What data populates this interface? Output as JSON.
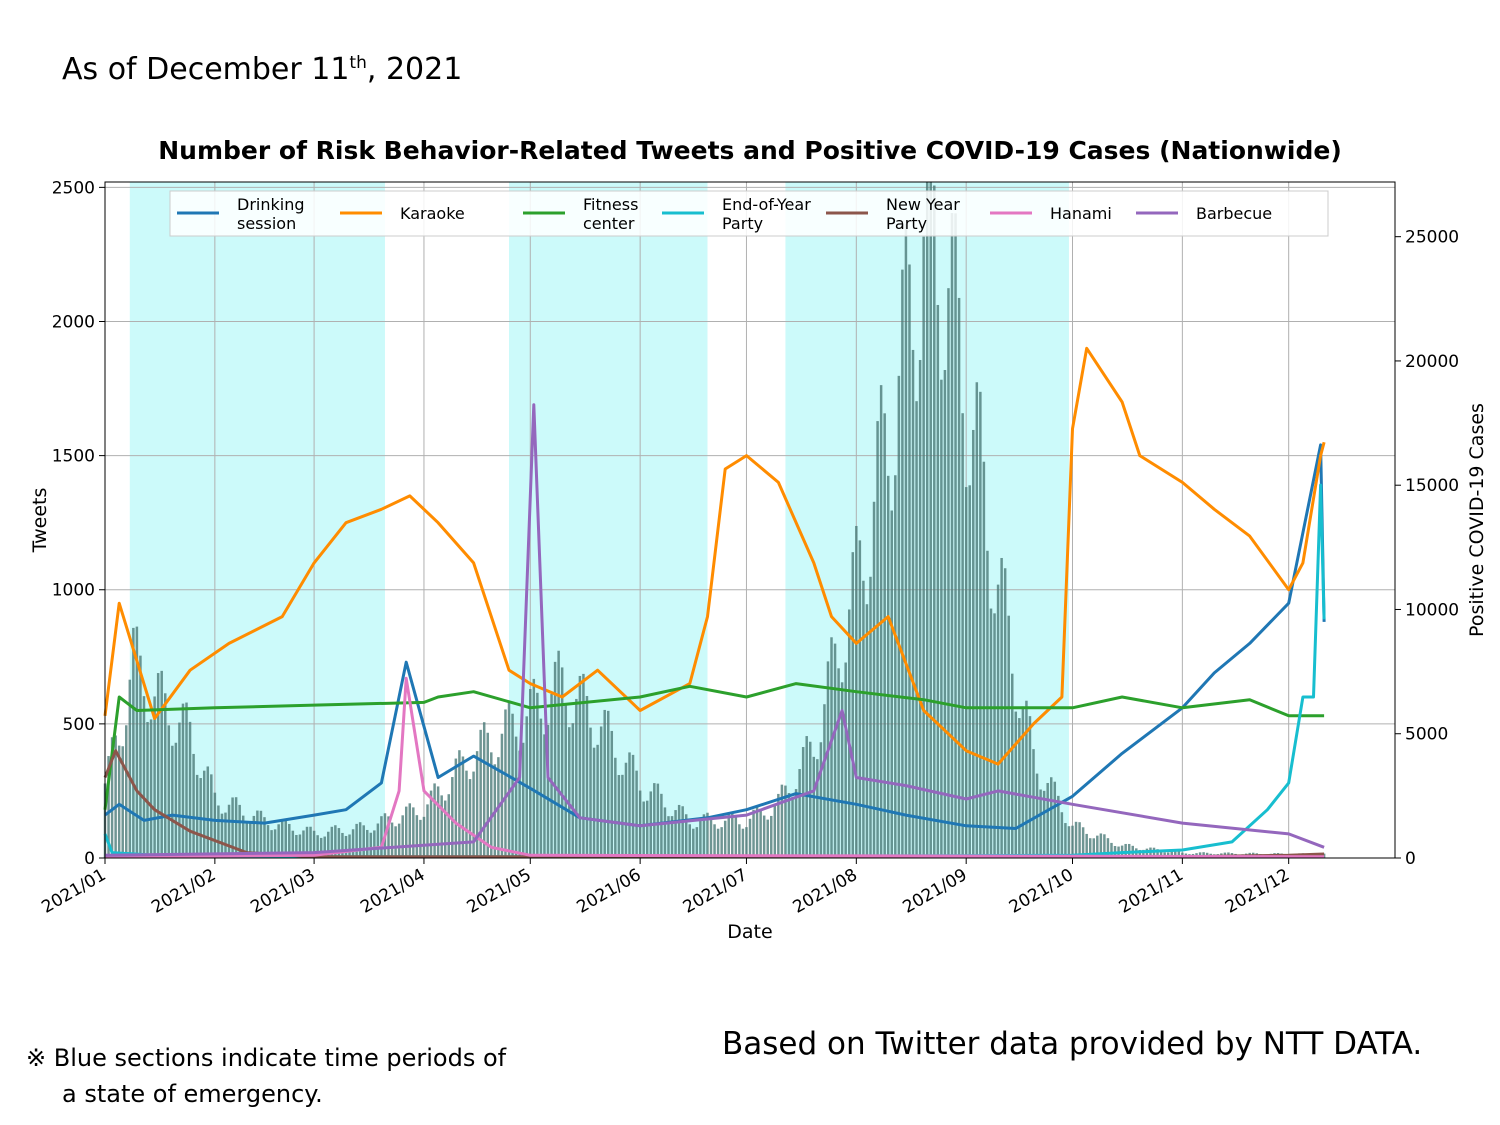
{
  "header": {
    "as_of_prefix": "As of December 11",
    "as_of_sup": "th",
    "as_of_suffix": ", 2021"
  },
  "footer": {
    "note_symbol": "※",
    "note_line1": "Blue sections indicate time periods of",
    "note_line2": "a state of emergency.",
    "credit": "Based on Twitter data provided by NTT DATA."
  },
  "colors": {
    "emergency_band": "#ccfafa",
    "case_bars": "#4b7a78",
    "grid": "#b0b0b0"
  },
  "chart_data": {
    "type": "line",
    "title": "Number of Risk Behavior-Related Tweets and Positive COVID-19 Cases (Nationwide)",
    "xlabel": "Date",
    "ylabel": "Tweets",
    "y2label": "Positive COVID-19 Cases",
    "xlim": [
      "2021-01-01",
      "2021-12-31"
    ],
    "ylim": [
      0,
      2520
    ],
    "y2lim": [
      0,
      27200
    ],
    "grid": true,
    "legend_position": "top",
    "x_ticks": [
      "2021/01",
      "2021/02",
      "2021/03",
      "2021/04",
      "2021/05",
      "2021/06",
      "2021/07",
      "2021/08",
      "2021/09",
      "2021/10",
      "2021/11",
      "2021/12"
    ],
    "y_ticks": [
      0,
      500,
      1000,
      1500,
      2000,
      2500
    ],
    "y2_ticks": [
      0,
      5000,
      10000,
      15000,
      20000,
      25000
    ],
    "emergency_periods": [
      [
        "2021-01-08",
        "2021-03-21"
      ],
      [
        "2021-04-25",
        "2021-06-20"
      ],
      [
        "2021-07-12",
        "2021-09-30"
      ]
    ],
    "series": [
      {
        "name": "Drinking session",
        "legend_label": [
          "Drinking",
          "session"
        ],
        "color": "#1f77b4",
        "dates": [
          "2021-01-01",
          "2021-01-05",
          "2021-01-12",
          "2021-01-20",
          "2021-02-01",
          "2021-02-15",
          "2021-03-01",
          "2021-03-10",
          "2021-03-20",
          "2021-03-27",
          "2021-04-05",
          "2021-04-15",
          "2021-05-01",
          "2021-05-15",
          "2021-06-01",
          "2021-06-20",
          "2021-07-01",
          "2021-07-15",
          "2021-08-01",
          "2021-08-15",
          "2021-09-01",
          "2021-09-15",
          "2021-10-01",
          "2021-10-15",
          "2021-11-01",
          "2021-11-10",
          "2021-11-20",
          "2021-12-01",
          "2021-12-10",
          "2021-12-11"
        ],
        "values": [
          160,
          200,
          140,
          160,
          140,
          130,
          160,
          180,
          280,
          730,
          300,
          380,
          260,
          150,
          120,
          150,
          180,
          240,
          200,
          160,
          120,
          110,
          230,
          390,
          560,
          690,
          800,
          950,
          1540,
          880
        ]
      },
      {
        "name": "Karaoke",
        "legend_label": [
          "Karaoke"
        ],
        "color": "#ff8c00",
        "dates": [
          "2021-01-01",
          "2021-01-05",
          "2021-01-15",
          "2021-01-25",
          "2021-02-05",
          "2021-02-20",
          "2021-03-01",
          "2021-03-10",
          "2021-03-20",
          "2021-03-28",
          "2021-04-05",
          "2021-04-15",
          "2021-04-25",
          "2021-05-01",
          "2021-05-10",
          "2021-05-20",
          "2021-06-01",
          "2021-06-15",
          "2021-06-20",
          "2021-06-25",
          "2021-07-01",
          "2021-07-10",
          "2021-07-20",
          "2021-07-25",
          "2021-08-01",
          "2021-08-10",
          "2021-08-20",
          "2021-09-01",
          "2021-09-10",
          "2021-09-20",
          "2021-09-28",
          "2021-10-01",
          "2021-10-05",
          "2021-10-15",
          "2021-10-20",
          "2021-11-01",
          "2021-11-10",
          "2021-11-20",
          "2021-12-01",
          "2021-12-05",
          "2021-12-10",
          "2021-12-11"
        ],
        "values": [
          530,
          950,
          520,
          700,
          800,
          900,
          1100,
          1250,
          1300,
          1350,
          1250,
          1100,
          700,
          650,
          600,
          700,
          550,
          650,
          900,
          1450,
          1500,
          1400,
          1100,
          900,
          800,
          900,
          550,
          400,
          350,
          500,
          600,
          1600,
          1900,
          1700,
          1500,
          1400,
          1300,
          1200,
          1000,
          1100,
          1500,
          1550
        ]
      },
      {
        "name": "Fitness center",
        "legend_label": [
          "Fitness",
          "center"
        ],
        "color": "#2ca02c",
        "dates": [
          "2021-01-01",
          "2021-01-05",
          "2021-01-10",
          "2021-02-01",
          "2021-03-01",
          "2021-04-01",
          "2021-04-05",
          "2021-04-15",
          "2021-05-01",
          "2021-06-01",
          "2021-06-15",
          "2021-07-01",
          "2021-07-15",
          "2021-08-01",
          "2021-08-20",
          "2021-09-01",
          "2021-10-01",
          "2021-10-15",
          "2021-11-01",
          "2021-11-20",
          "2021-12-01",
          "2021-12-11"
        ],
        "values": [
          180,
          600,
          550,
          560,
          570,
          580,
          600,
          620,
          560,
          600,
          640,
          600,
          650,
          620,
          590,
          560,
          560,
          600,
          560,
          590,
          530,
          530
        ]
      },
      {
        "name": "End-of-Year Party",
        "legend_label": [
          "End-of-Year",
          "Party"
        ],
        "color": "#17becf",
        "dates": [
          "2021-01-01",
          "2021-01-03",
          "2021-01-15",
          "2021-03-01",
          "2021-06-01",
          "2021-10-01",
          "2021-10-15",
          "2021-11-01",
          "2021-11-15",
          "2021-11-25",
          "2021-12-01",
          "2021-12-05",
          "2021-12-08",
          "2021-12-10",
          "2021-12-11"
        ],
        "values": [
          90,
          20,
          10,
          5,
          5,
          10,
          20,
          30,
          60,
          180,
          280,
          600,
          600,
          1390,
          890
        ]
      },
      {
        "name": "New Year Party",
        "legend_label": [
          "New Year",
          "Party"
        ],
        "color": "#8c564b",
        "dates": [
          "2021-01-01",
          "2021-01-04",
          "2021-01-10",
          "2021-01-15",
          "2021-01-25",
          "2021-02-10",
          "2021-03-01",
          "2021-06-01",
          "2021-11-01",
          "2021-12-01",
          "2021-12-11"
        ],
        "values": [
          300,
          400,
          250,
          180,
          100,
          20,
          5,
          5,
          5,
          10,
          15
        ]
      },
      {
        "name": "Hanami",
        "legend_label": [
          "Hanami"
        ],
        "color": "#e377c2",
        "dates": [
          "2021-01-01",
          "2021-03-01",
          "2021-03-20",
          "2021-03-25",
          "2021-03-27",
          "2021-04-01",
          "2021-04-10",
          "2021-04-20",
          "2021-05-01",
          "2021-12-11"
        ],
        "values": [
          5,
          10,
          40,
          250,
          670,
          250,
          130,
          40,
          10,
          5
        ]
      },
      {
        "name": "Barbecue",
        "legend_label": [
          "Barbecue"
        ],
        "color": "#9467bd",
        "dates": [
          "2021-01-01",
          "2021-03-01",
          "2021-04-15",
          "2021-04-28",
          "2021-05-02",
          "2021-05-06",
          "2021-05-15",
          "2021-06-01",
          "2021-07-01",
          "2021-07-20",
          "2021-07-28",
          "2021-08-01",
          "2021-08-15",
          "2021-09-01",
          "2021-09-10",
          "2021-10-01",
          "2021-11-01",
          "2021-12-01",
          "2021-12-11"
        ],
        "values": [
          10,
          20,
          60,
          300,
          1690,
          300,
          150,
          120,
          160,
          250,
          550,
          300,
          270,
          220,
          250,
          200,
          130,
          90,
          40
        ]
      }
    ],
    "cases_series": {
      "name": "Positive COVID-19 Cases",
      "axis": "right",
      "type": "bar",
      "dates": [
        "2021-01-01",
        "2021-01-05",
        "2021-01-09",
        "2021-01-15",
        "2021-01-25",
        "2021-02-01",
        "2021-02-15",
        "2021-03-01",
        "2021-03-15",
        "2021-04-01",
        "2021-04-15",
        "2021-05-01",
        "2021-05-10",
        "2021-05-20",
        "2021-06-01",
        "2021-06-15",
        "2021-07-01",
        "2021-07-10",
        "2021-07-20",
        "2021-07-28",
        "2021-08-01",
        "2021-08-10",
        "2021-08-15",
        "2021-08-20",
        "2021-08-25",
        "2021-09-01",
        "2021-09-10",
        "2021-09-20",
        "2021-10-01",
        "2021-10-15",
        "2021-11-01",
        "2021-12-11"
      ],
      "values": [
        3000,
        5000,
        7900,
        6500,
        5000,
        2400,
        1500,
        1000,
        1200,
        2000,
        4200,
        5800,
        7000,
        5500,
        3000,
        1500,
        1500,
        2200,
        4500,
        9000,
        11000,
        17000,
        21000,
        25000,
        24500,
        19000,
        11000,
        4000,
        1300,
        500,
        200,
        150
      ]
    }
  }
}
